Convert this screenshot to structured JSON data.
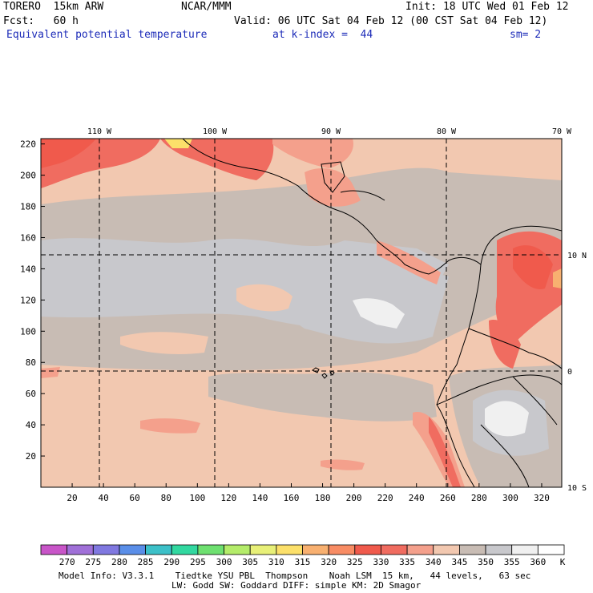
{
  "header": {
    "model": "TORERO  15km ARW",
    "org": "NCAR/MMM",
    "init": "Init: 18 UTC Wed 01 Feb 12",
    "fcst": "Fcst:   60 h",
    "valid": "Valid: 06 UTC Sat 04 Feb 12 (00 CST Sat 04 Feb 12)",
    "field": "Equivalent potential temperature",
    "level": "at k-index =  44",
    "smooth": "sm= 2"
  },
  "map": {
    "top_lon_labels": [
      "110 W",
      "100 W",
      "90 W",
      "80 W",
      "70 W"
    ],
    "right_lat_labels": [
      "10 N",
      "0",
      "10 S"
    ],
    "y_ticks": [
      "20",
      "40",
      "60",
      "80",
      "100",
      "120",
      "140",
      "160",
      "180",
      "200",
      "220"
    ],
    "x_ticks": [
      "20",
      "40",
      "60",
      "80",
      "100",
      "120",
      "140",
      "160",
      "180",
      "200",
      "220",
      "240",
      "260",
      "280",
      "300",
      "320"
    ]
  },
  "colorbar": {
    "labels": [
      "270",
      "275",
      "280",
      "285",
      "290",
      "295",
      "300",
      "305",
      "310",
      "315",
      "320",
      "325",
      "330",
      "335",
      "340",
      "345",
      "350",
      "355",
      "360"
    ],
    "unit": "K",
    "colors": [
      "#c855c8",
      "#a070d8",
      "#8078e0",
      "#5a8ee8",
      "#3cc0c8",
      "#32d8a0",
      "#6ee070",
      "#b4ec6a",
      "#e8f078",
      "#fce06a",
      "#f8b070",
      "#f88c64",
      "#f05a4c",
      "#f06c60",
      "#f4a08c",
      "#f2c8b0",
      "#c8bcb4",
      "#c8c8cc",
      "#f0f0f0",
      "#ffffff"
    ]
  },
  "footer": {
    "line1": "Model Info: V3.3.1    Tiedtke YSU PBL  Thompson    Noah LSM  15 km,   44 levels,   63 sec",
    "line2": "LW: Godd SW: Goddard DIFF: simple KM: 2D Smagor"
  }
}
